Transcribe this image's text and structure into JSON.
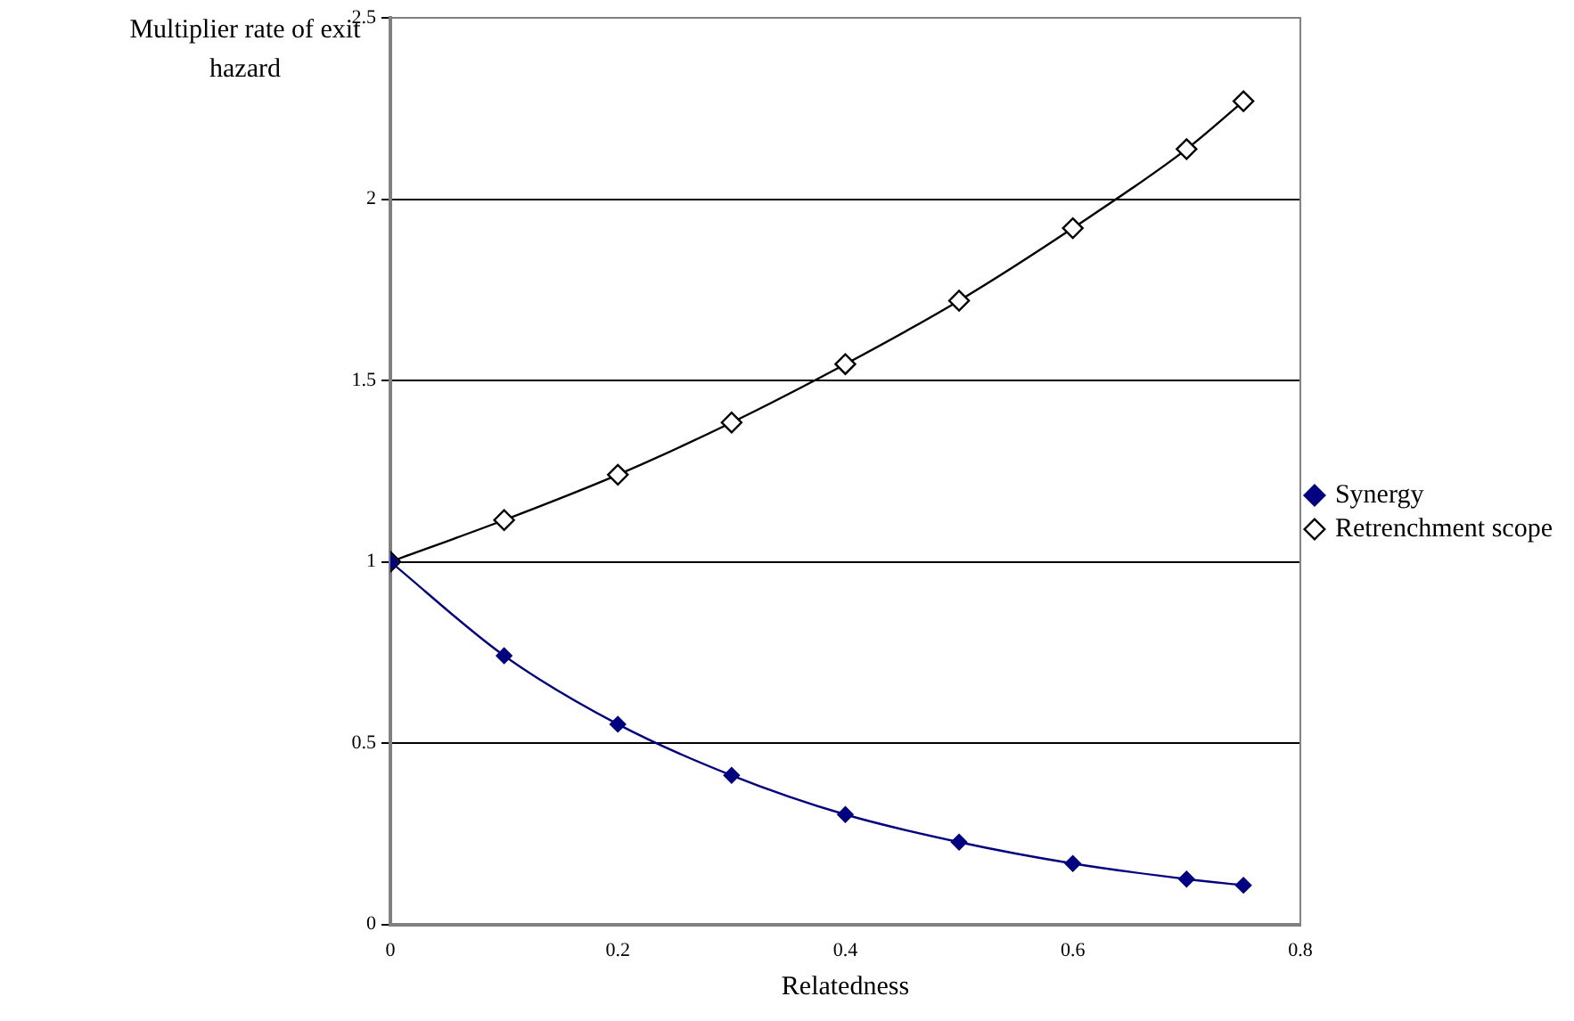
{
  "chart_data": {
    "type": "line",
    "xlabel": "Relatedness",
    "ylabel": "Multiplier rate of exit hazard",
    "x": [
      0,
      0.1,
      0.2,
      0.3,
      0.4,
      0.5,
      0.6,
      0.7,
      0.75
    ],
    "series": [
      {
        "name": "Synergy",
        "color": "#000080",
        "values": [
          1,
          0.741,
          0.552,
          0.411,
          0.303,
          0.227,
          0.168,
          0.125,
          0.108
        ]
      },
      {
        "name": "Retrenchment scope",
        "color": "#000000",
        "values": [
          1,
          1.115,
          1.24,
          1.384,
          1.545,
          1.72,
          1.92,
          2.138,
          2.27
        ]
      }
    ],
    "xlim": [
      0,
      0.8
    ],
    "xticks": [
      0,
      0.2,
      0.4,
      0.6,
      0.8
    ],
    "ylim": [
      0,
      2.5
    ],
    "yticks": [
      0,
      0.5,
      1,
      1.5,
      2,
      2.5
    ],
    "grid": "y",
    "legend": "right",
    "marker": "diamond",
    "line_style": "solid"
  }
}
